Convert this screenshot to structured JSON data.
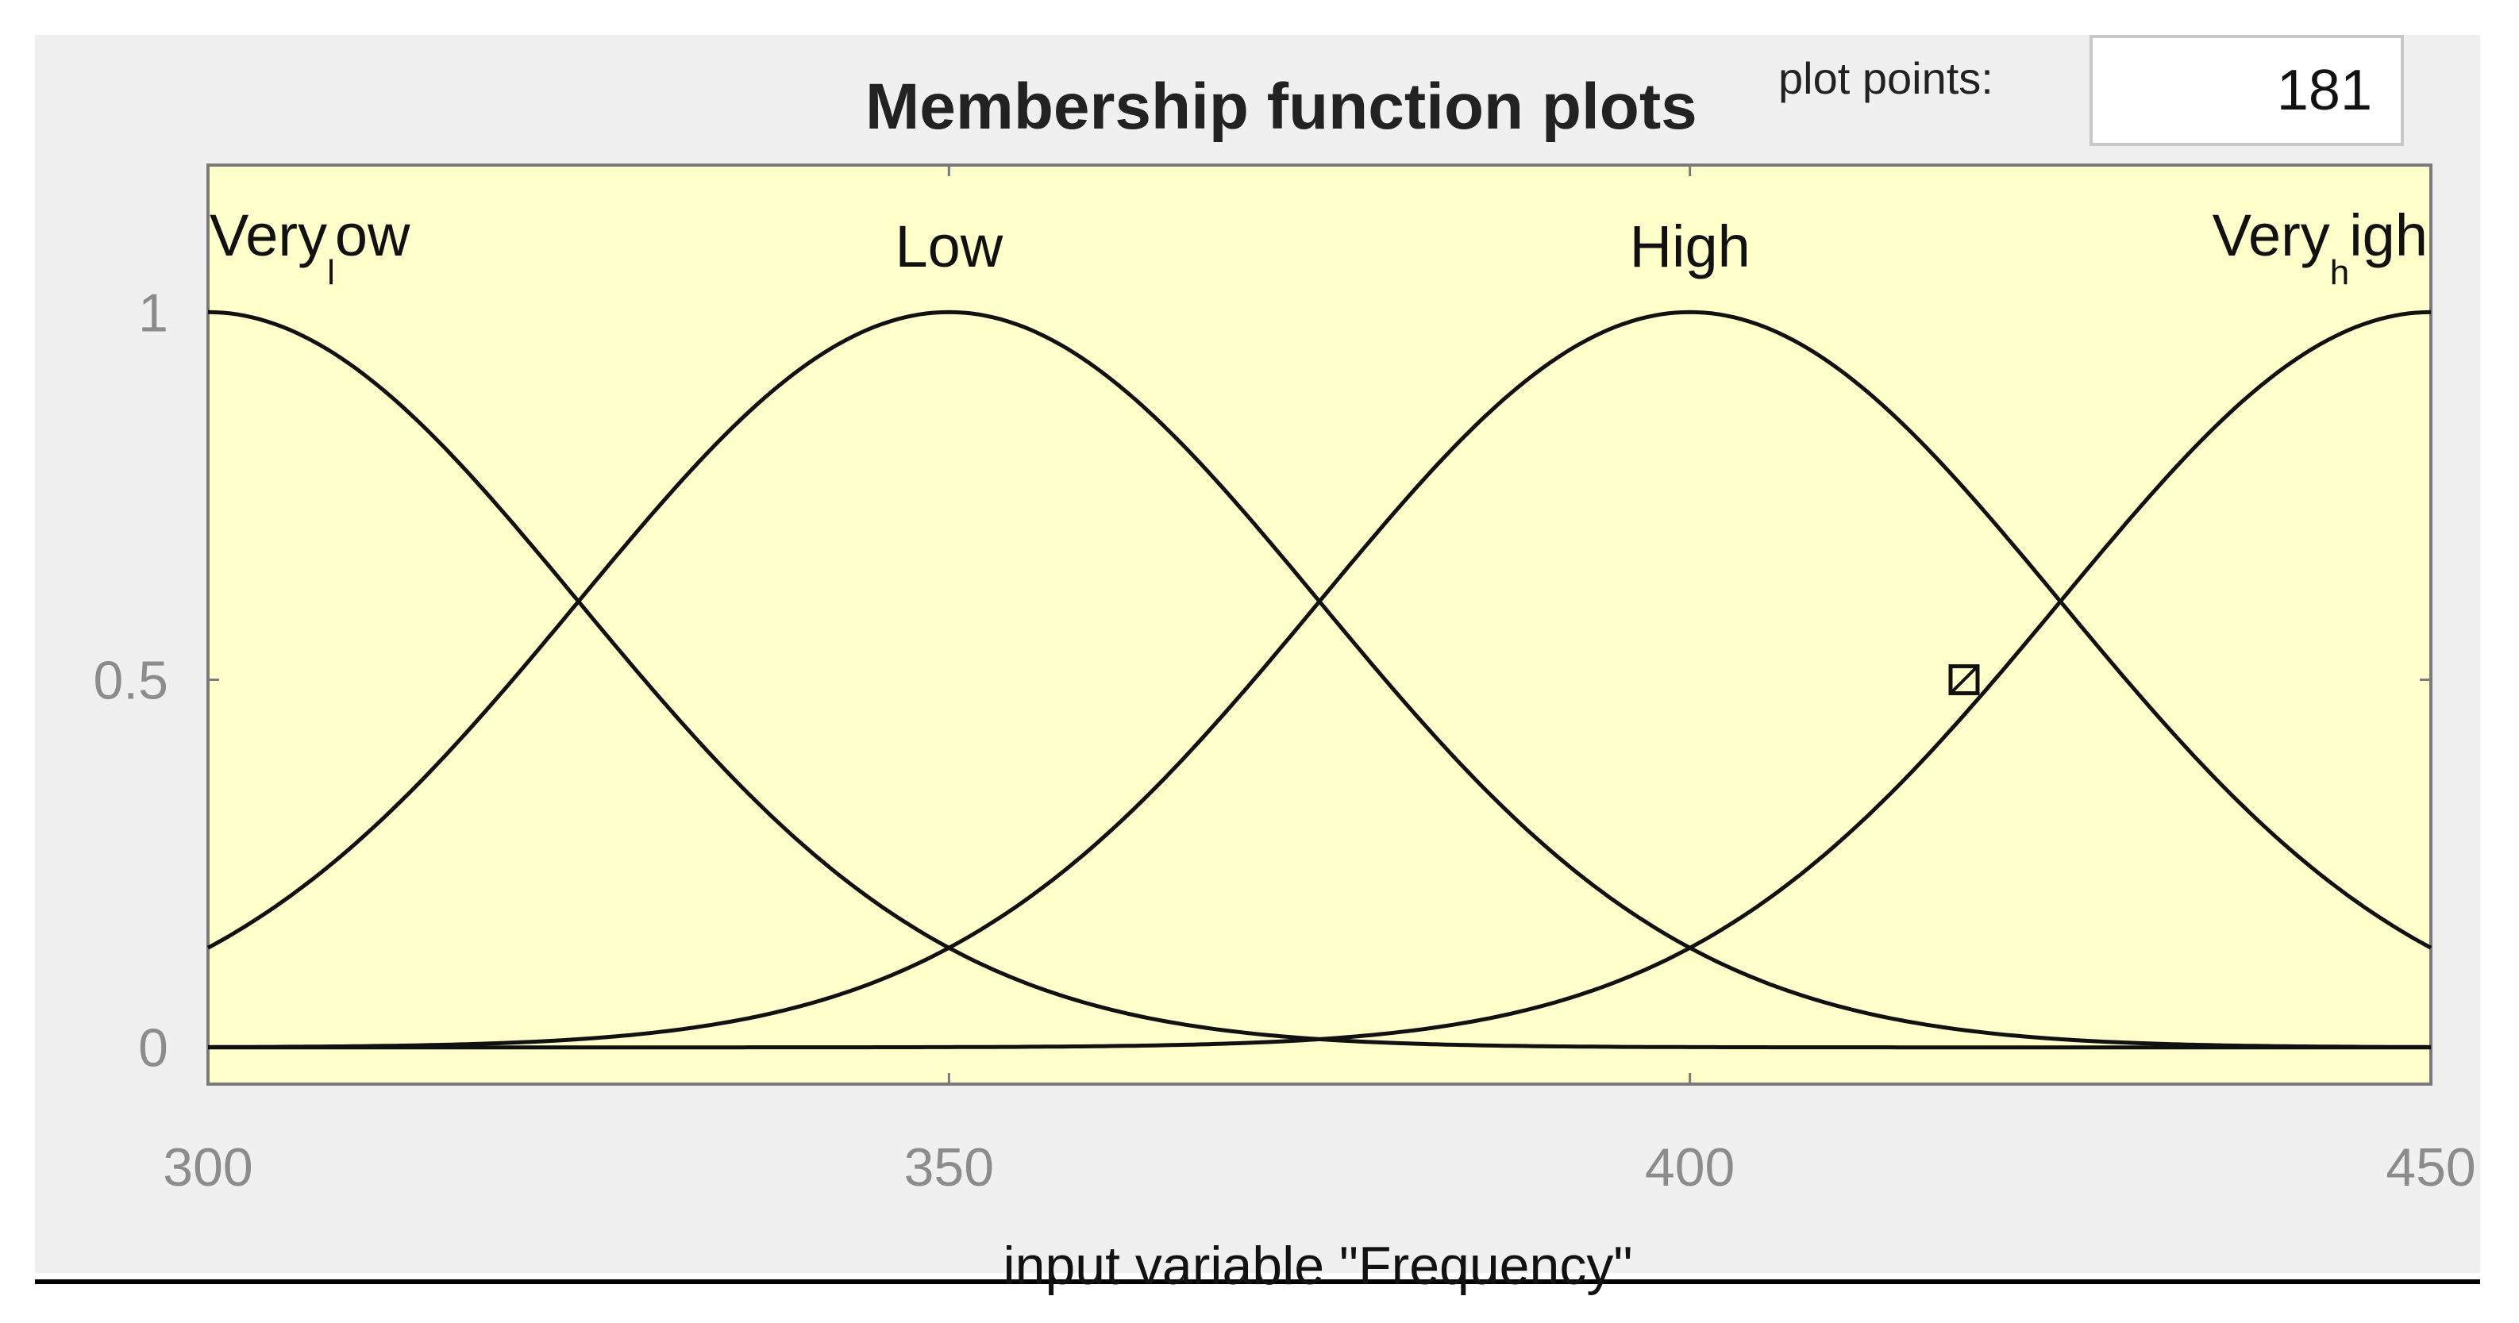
{
  "header": {
    "title": "Membership function plots",
    "plot_points_label": "plot points:",
    "plot_points_value": "181"
  },
  "colors": {
    "plot_background": "#ffffcc",
    "curve": "#111111",
    "panel": "#f0f0f0"
  },
  "chart_data": {
    "type": "line",
    "title": "Membership function plots",
    "xlabel": "input variable \"Frequency\"",
    "ylabel": "",
    "xlim": [
      300,
      450
    ],
    "ylim": [
      -0.05,
      1.2
    ],
    "x_ticks": [
      300,
      350,
      400,
      450
    ],
    "x_tick_labels": [
      "300",
      "350",
      "400",
      "450"
    ],
    "y_ticks": [
      0,
      0.5,
      1
    ],
    "y_tick_labels": [
      "0",
      "0.5",
      "1"
    ],
    "grid": false,
    "legend": "none",
    "series": [
      {
        "name": "Very_low",
        "shape": "gaussian",
        "center": 300,
        "sigma": 25
      },
      {
        "name": "Low",
        "shape": "gaussian",
        "center": 350,
        "sigma": 25
      },
      {
        "name": "High",
        "shape": "gaussian",
        "center": 400,
        "sigma": 25
      },
      {
        "name": "Very_high",
        "shape": "gaussian",
        "center": 450,
        "sigma": 25
      }
    ],
    "labels": [
      {
        "main": "Very",
        "sub": "l",
        "rest": "ow",
        "x": 300,
        "align": "start"
      },
      {
        "main": "Low",
        "x": 350,
        "align": "middle"
      },
      {
        "main": "High",
        "x": 400,
        "align": "middle"
      },
      {
        "main": "Very",
        "sub": "h",
        "rest": "igh",
        "x": 450,
        "align": "end"
      }
    ],
    "marker": {
      "x": 418.5,
      "y": 0.5,
      "shape": "square-x"
    }
  }
}
